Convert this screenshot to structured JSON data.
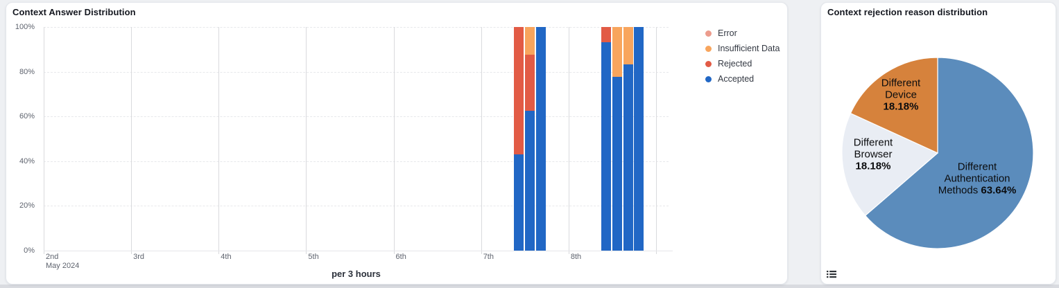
{
  "page": {
    "background": "#eef0f3",
    "bottom_edge_color": "#d9dbe0"
  },
  "left_panel": {
    "title": "Context Answer Distribution",
    "footer_label": "per 3 hours"
  },
  "right_panel": {
    "title": "Context rejection reason distribution",
    "legend_toggle_icon": "list-icon"
  },
  "chart_data": [
    {
      "type": "bar",
      "stacked": true,
      "normalized_percent": true,
      "title": "Context Answer Distribution",
      "xlabel": "per 3 hours",
      "ylabel": "",
      "ylim": [
        0,
        100
      ],
      "y_ticks": [
        "0%",
        "20%",
        "40%",
        "60%",
        "80%",
        "100%"
      ],
      "x_day_ticks": [
        "2nd",
        "3rd",
        "4th",
        "5th",
        "6th",
        "7th",
        "8th"
      ],
      "x_first_tick_sub": "May 2024",
      "grid": {
        "horizontal": "dashed",
        "vertical": "solid"
      },
      "legend_position": "right",
      "series": [
        {
          "key": "error",
          "label": "Error",
          "color": "#ec9c8d"
        },
        {
          "key": "insufficient_data",
          "label": "Insufficient Data",
          "color": "#f8a55d"
        },
        {
          "key": "rejected",
          "label": "Rejected",
          "color": "#e25b45"
        },
        {
          "key": "accepted",
          "label": "Accepted",
          "color": "#2167c5"
        }
      ],
      "bars": [
        {
          "time": "2024-05-07 09:00",
          "day_offset": 5.375,
          "error": 0,
          "insufficient_data": 0,
          "rejected": 57.1,
          "accepted": 42.9
        },
        {
          "time": "2024-05-07 12:00",
          "day_offset": 5.5,
          "error": 0,
          "insufficient_data": 12.5,
          "rejected": 25.0,
          "accepted": 62.5
        },
        {
          "time": "2024-05-07 15:00",
          "day_offset": 5.625,
          "error": 0,
          "insufficient_data": 0,
          "rejected": 0,
          "accepted": 100
        },
        {
          "time": "2024-05-08 09:00",
          "day_offset": 6.375,
          "error": 0,
          "insufficient_data": 0,
          "rejected": 6.7,
          "accepted": 93.3
        },
        {
          "time": "2024-05-08 12:00",
          "day_offset": 6.5,
          "error": 0,
          "insufficient_data": 22.2,
          "rejected": 0,
          "accepted": 77.8
        },
        {
          "time": "2024-05-08 15:00",
          "day_offset": 6.625,
          "error": 0,
          "insufficient_data": 16.7,
          "rejected": 0,
          "accepted": 83.3
        },
        {
          "time": "2024-05-08 18:00",
          "day_offset": 6.75,
          "error": 0,
          "insufficient_data": 0,
          "rejected": 0,
          "accepted": 100
        }
      ]
    },
    {
      "type": "pie",
      "title": "Context rejection reason distribution",
      "start_angle_deg": 0,
      "direction": "clockwise",
      "slices": [
        {
          "label": "Different Authentication Methods",
          "value": 63.64,
          "pct_text": "63.64%",
          "color": "#5b8cbc",
          "lines": [
            [
              {
                "text": "Different"
              }
            ],
            [
              {
                "text": "Authentication"
              }
            ],
            [
              {
                "text": "Methods "
              },
              {
                "text": "63.64%",
                "bold": true
              }
            ]
          ]
        },
        {
          "label": "Different Browser",
          "value": 18.18,
          "pct_text": "18.18%",
          "color": "#e9edf4",
          "lines": [
            [
              {
                "text": "Different"
              }
            ],
            [
              {
                "text": "Browser"
              }
            ],
            [
              {
                "text": "18.18%",
                "bold": true
              }
            ]
          ]
        },
        {
          "label": "Different Device",
          "value": 18.18,
          "pct_text": "18.18%",
          "color": "#d6823c",
          "lines": [
            [
              {
                "text": "Different"
              }
            ],
            [
              {
                "text": "Device"
              }
            ],
            [
              {
                "text": "18.18%",
                "bold": true
              }
            ]
          ]
        }
      ]
    }
  ]
}
